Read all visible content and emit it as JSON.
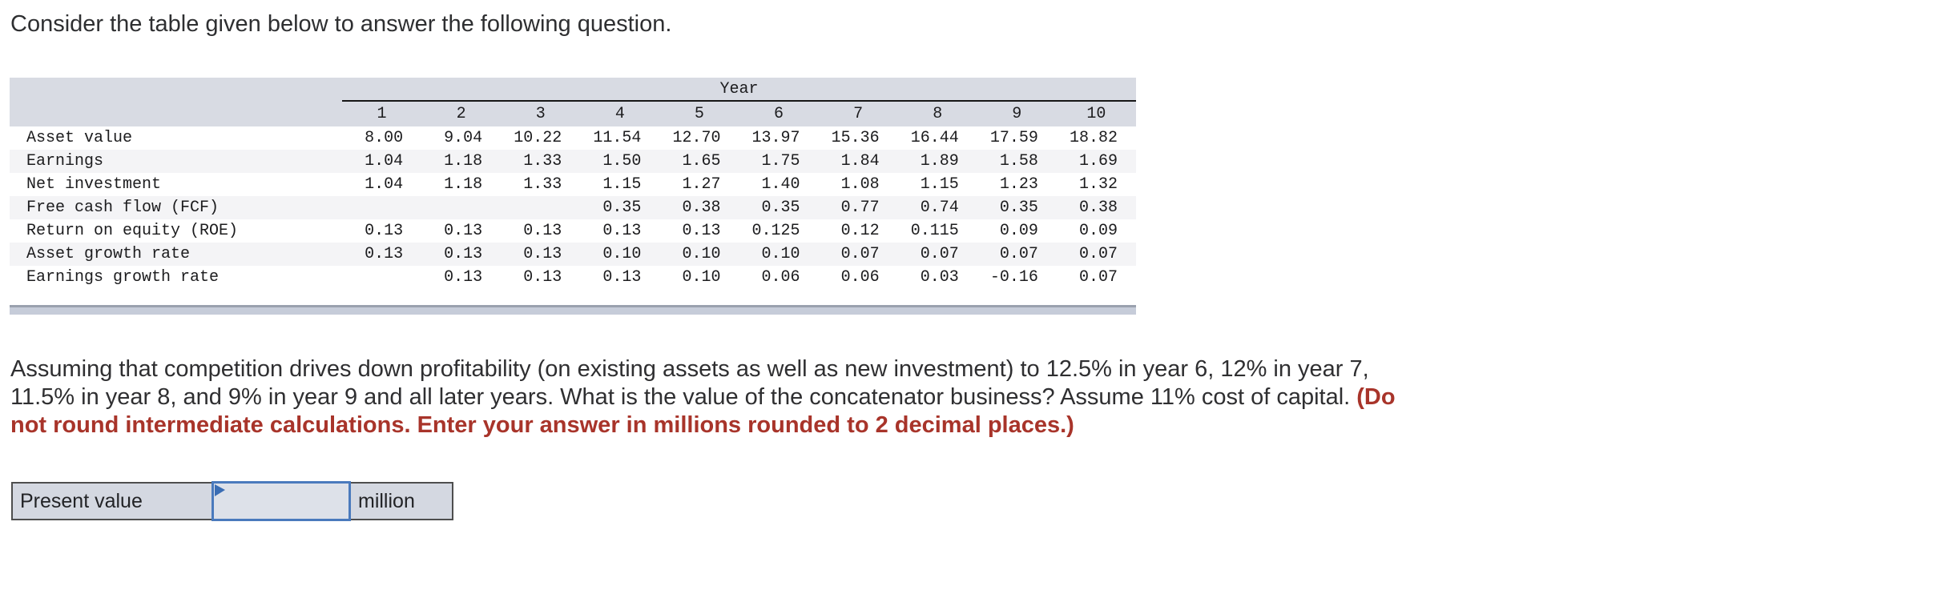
{
  "page": {
    "intro": "Consider the table given below to answer the following question."
  },
  "table": {
    "year_header": "Year",
    "col_headers": [
      "1",
      "2",
      "3",
      "4",
      "5",
      "6",
      "7",
      "8",
      "9",
      "10"
    ],
    "rows": [
      {
        "label": "Asset value",
        "values": [
          "8.00",
          "9.04",
          "10.22",
          "11.54",
          "12.70",
          "13.97",
          "15.36",
          "16.44",
          "17.59",
          "18.82"
        ]
      },
      {
        "label": "Earnings",
        "values": [
          "1.04",
          "1.18",
          "1.33",
          "1.50",
          "1.65",
          "1.75",
          "1.84",
          "1.89",
          "1.58",
          "1.69"
        ]
      },
      {
        "label": "Net investment",
        "values": [
          "1.04",
          "1.18",
          "1.33",
          "1.15",
          "1.27",
          "1.40",
          "1.08",
          "1.15",
          "1.23",
          "1.32"
        ]
      },
      {
        "label": "Free cash flow (FCF)",
        "values": [
          "",
          "",
          "",
          "0.35",
          "0.38",
          "0.35",
          "0.77",
          "0.74",
          "0.35",
          "0.38"
        ]
      },
      {
        "label": "Return on equity (ROE)",
        "values": [
          "0.13",
          "0.13",
          "0.13",
          "0.13",
          "0.13",
          "0.125",
          "0.12",
          "0.115",
          "0.09",
          "0.09"
        ]
      },
      {
        "label": "Asset growth rate",
        "values": [
          "0.13",
          "0.13",
          "0.13",
          "0.10",
          "0.10",
          "0.10",
          "0.07",
          "0.07",
          "0.07",
          "0.07"
        ]
      },
      {
        "label": "Earnings growth rate",
        "values": [
          "",
          "0.13",
          "0.13",
          "0.13",
          "0.10",
          "0.06",
          "0.06",
          "0.03",
          "-0.16",
          "0.07"
        ]
      }
    ]
  },
  "question": {
    "line1": "Assuming that competition drives down profitability (on existing assets as well as new investment) to 12.5% in year 6, 12% in year 7,",
    "line2_normal": "11.5% in year 8, and 9% in year 9 and all later years. What is the value of the concatenator business? Assume 11% cost of capital. ",
    "line2_red": "(Do",
    "line3_red": "not round intermediate calculations. Enter your answer in millions rounded to 2 decimal places.)"
  },
  "answer": {
    "label": "Present value",
    "input_value": "",
    "unit": "million"
  },
  "colors": {
    "body_text": "#2f2f31",
    "emphasis_red": "#a8342a",
    "table_header_bg": "#d8dbe3",
    "table_alt_row_bg": "#f4f4f6",
    "scrollbar_track": "#c6ccd9",
    "answer_cell_bg": "#d4d8e1",
    "answer_cell_border": "#4e4e4e",
    "input_border_blue": "#4a7abd",
    "marker_blue": "#3a6db4"
  }
}
